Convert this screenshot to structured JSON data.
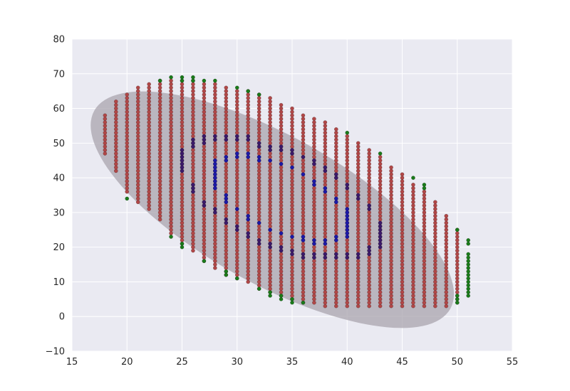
{
  "chart_data": {
    "type": "scatter",
    "xlim": [
      15,
      55
    ],
    "ylim": [
      -10,
      80
    ],
    "x_ticks": [
      15,
      20,
      25,
      30,
      35,
      40,
      45,
      50,
      55
    ],
    "x_tick_labels": [
      "15",
      "20",
      "25",
      "30",
      "35",
      "40",
      "45",
      "50",
      "55"
    ],
    "y_ticks": [
      -10,
      0,
      10,
      20,
      30,
      40,
      50,
      60,
      70,
      80
    ],
    "y_tick_labels": [
      "−10",
      "0",
      "10",
      "20",
      "30",
      "40",
      "50",
      "60",
      "70",
      "80"
    ],
    "grid": true,
    "background_color": "#eaeaf2",
    "ellipse": {
      "center": [
        33.2,
        30.8
      ],
      "x_extent": [
        18.2,
        51.2
      ],
      "y_extent": [
        0.3,
        68.5
      ],
      "fill_color": "#a9a4ad",
      "opacity": 0.75
    },
    "grid_points": {
      "color": "#b04747",
      "x_range": [
        18,
        51
      ],
      "y_step": 1,
      "columns": [
        [
          18,
          47,
          58
        ],
        [
          19,
          42,
          62
        ],
        [
          20,
          36,
          64
        ],
        [
          21,
          33,
          66
        ],
        [
          22,
          31,
          67
        ],
        [
          23,
          28,
          68
        ],
        [
          24,
          24,
          68
        ],
        [
          25,
          21,
          68
        ],
        [
          26,
          19,
          68
        ],
        [
          27,
          16,
          67
        ],
        [
          28,
          14,
          67
        ],
        [
          29,
          12,
          66
        ],
        [
          30,
          11,
          65
        ],
        [
          31,
          10,
          65
        ],
        [
          32,
          8,
          64
        ],
        [
          33,
          7,
          63
        ],
        [
          34,
          6,
          61
        ],
        [
          35,
          5,
          60
        ],
        [
          36,
          4,
          58
        ],
        [
          37,
          4,
          57
        ],
        [
          38,
          3,
          56
        ],
        [
          39,
          3,
          54
        ],
        [
          40,
          3,
          52
        ],
        [
          41,
          3,
          50
        ],
        [
          42,
          3,
          48
        ],
        [
          43,
          3,
          46
        ],
        [
          44,
          3,
          43
        ],
        [
          45,
          3,
          41
        ],
        [
          46,
          3,
          38
        ],
        [
          47,
          3,
          36
        ],
        [
          48,
          3,
          33
        ],
        [
          49,
          3,
          29
        ],
        [
          50,
          4,
          25
        ]
      ]
    },
    "series": [
      {
        "color": "#1a7a1a",
        "points": [
          [
            20,
            34
          ],
          [
            23,
            68
          ],
          [
            24,
            69
          ],
          [
            24,
            23
          ],
          [
            25,
            69
          ],
          [
            25,
            68
          ],
          [
            25,
            21
          ],
          [
            25,
            20
          ],
          [
            26,
            69
          ],
          [
            26,
            68
          ],
          [
            27,
            68
          ],
          [
            27,
            16
          ],
          [
            28,
            68
          ],
          [
            29,
            13
          ],
          [
            29,
            12
          ],
          [
            30,
            66
          ],
          [
            30,
            11
          ],
          [
            31,
            65
          ],
          [
            32,
            64
          ],
          [
            32,
            8
          ],
          [
            33,
            7
          ],
          [
            33,
            6
          ],
          [
            34,
            6
          ],
          [
            34,
            5
          ],
          [
            35,
            5
          ],
          [
            35,
            4
          ],
          [
            36,
            4
          ],
          [
            40,
            53
          ],
          [
            43,
            47
          ],
          [
            46,
            40
          ],
          [
            47,
            38
          ],
          [
            47,
            37
          ],
          [
            50,
            25
          ],
          [
            50,
            6
          ],
          [
            50,
            5
          ],
          [
            50,
            4
          ],
          [
            51,
            22
          ],
          [
            51,
            21
          ],
          [
            51,
            18
          ],
          [
            51,
            17
          ],
          [
            51,
            16
          ],
          [
            51,
            15
          ],
          [
            51,
            14
          ],
          [
            51,
            13
          ],
          [
            51,
            12
          ],
          [
            51,
            11
          ],
          [
            51,
            10
          ],
          [
            51,
            9
          ],
          [
            51,
            8
          ],
          [
            51,
            7
          ],
          [
            51,
            6
          ]
        ]
      },
      {
        "color": "#3b1a6b",
        "points": [
          [
            25,
            48
          ],
          [
            25,
            47
          ],
          [
            25,
            46
          ],
          [
            25,
            45
          ],
          [
            25,
            44
          ],
          [
            25,
            43
          ],
          [
            25,
            42
          ],
          [
            26,
            51
          ],
          [
            26,
            50
          ],
          [
            26,
            49
          ],
          [
            26,
            38
          ],
          [
            26,
            37
          ],
          [
            26,
            36
          ],
          [
            27,
            52
          ],
          [
            27,
            51
          ],
          [
            27,
            50
          ],
          [
            27,
            33
          ],
          [
            27,
            32
          ],
          [
            28,
            52
          ],
          [
            28,
            51
          ],
          [
            28,
            31
          ],
          [
            28,
            30
          ],
          [
            29,
            52
          ],
          [
            29,
            51
          ],
          [
            29,
            28
          ],
          [
            29,
            27
          ],
          [
            30,
            52
          ],
          [
            30,
            51
          ],
          [
            30,
            26
          ],
          [
            30,
            25
          ],
          [
            31,
            52
          ],
          [
            31,
            51
          ],
          [
            31,
            24
          ],
          [
            31,
            23
          ],
          [
            32,
            50
          ],
          [
            32,
            49
          ],
          [
            32,
            22
          ],
          [
            32,
            21
          ],
          [
            33,
            49
          ],
          [
            33,
            48
          ],
          [
            33,
            21
          ],
          [
            33,
            20
          ],
          [
            34,
            49
          ],
          [
            34,
            48
          ],
          [
            34,
            20
          ],
          [
            34,
            19
          ],
          [
            35,
            48
          ],
          [
            35,
            47
          ],
          [
            35,
            19
          ],
          [
            35,
            18
          ],
          [
            36,
            46
          ],
          [
            36,
            18
          ],
          [
            36,
            17
          ],
          [
            37,
            45
          ],
          [
            37,
            44
          ],
          [
            37,
            18
          ],
          [
            37,
            17
          ],
          [
            38,
            43
          ],
          [
            38,
            42
          ],
          [
            38,
            18
          ],
          [
            38,
            17
          ],
          [
            39,
            41
          ],
          [
            39,
            40
          ],
          [
            39,
            18
          ],
          [
            39,
            17
          ],
          [
            40,
            38
          ],
          [
            40,
            37
          ],
          [
            40,
            18
          ],
          [
            40,
            17
          ],
          [
            41,
            35
          ],
          [
            41,
            34
          ],
          [
            41,
            18
          ],
          [
            41,
            17
          ],
          [
            42,
            32
          ],
          [
            42,
            31
          ],
          [
            42,
            20
          ],
          [
            42,
            19
          ],
          [
            42,
            18
          ],
          [
            43,
            27
          ],
          [
            43,
            26
          ],
          [
            43,
            25
          ],
          [
            43,
            24
          ],
          [
            43,
            23
          ],
          [
            43,
            22
          ],
          [
            43,
            21
          ],
          [
            43,
            20
          ]
        ]
      },
      {
        "color": "#1c19a8",
        "points": [
          [
            28,
            45
          ],
          [
            28,
            44
          ],
          [
            28,
            43
          ],
          [
            28,
            42
          ],
          [
            28,
            41
          ],
          [
            28,
            40
          ],
          [
            28,
            39
          ],
          [
            28,
            38
          ],
          [
            28,
            37
          ],
          [
            29,
            46
          ],
          [
            29,
            45
          ],
          [
            29,
            35
          ],
          [
            29,
            34
          ],
          [
            29,
            33
          ],
          [
            30,
            47
          ],
          [
            30,
            46
          ],
          [
            30,
            31
          ],
          [
            31,
            47
          ],
          [
            31,
            46
          ],
          [
            31,
            29
          ],
          [
            31,
            28
          ],
          [
            32,
            46
          ],
          [
            32,
            45
          ],
          [
            32,
            27
          ],
          [
            33,
            45
          ],
          [
            33,
            25
          ],
          [
            34,
            44
          ],
          [
            34,
            24
          ],
          [
            35,
            43
          ],
          [
            35,
            23
          ],
          [
            36,
            41
          ],
          [
            36,
            23
          ],
          [
            36,
            22
          ],
          [
            37,
            39
          ],
          [
            37,
            38
          ],
          [
            37,
            22
          ],
          [
            37,
            21
          ],
          [
            38,
            37
          ],
          [
            38,
            36
          ],
          [
            38,
            22
          ],
          [
            38,
            21
          ],
          [
            39,
            34
          ],
          [
            39,
            33
          ],
          [
            39,
            23
          ],
          [
            39,
            22
          ],
          [
            40,
            31
          ],
          [
            40,
            30
          ],
          [
            40,
            29
          ],
          [
            40,
            28
          ],
          [
            40,
            27
          ],
          [
            40,
            26
          ],
          [
            40,
            25
          ],
          [
            40,
            24
          ],
          [
            40,
            23
          ]
        ]
      }
    ]
  }
}
